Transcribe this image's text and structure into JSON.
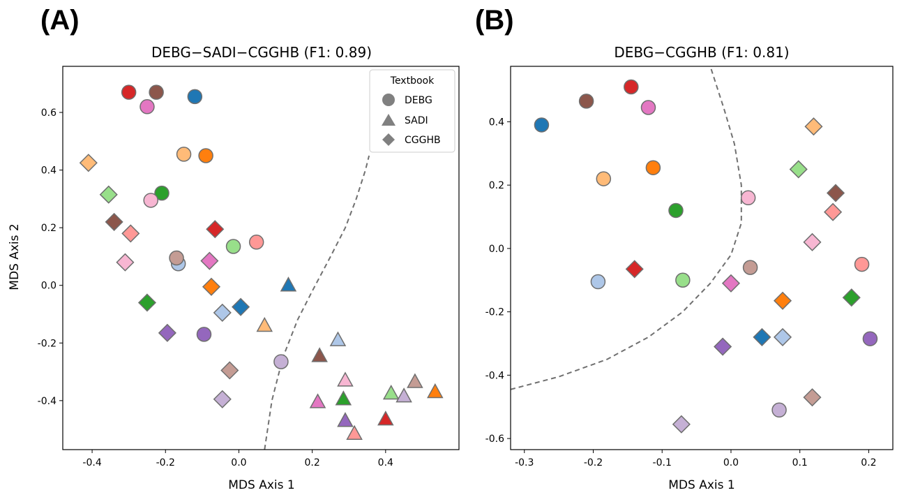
{
  "palette": {
    "blue": "#1f77b4",
    "light_blue": "#aec7e8",
    "orange": "#ff7f0e",
    "light_orange": "#ffbb78",
    "green": "#2ca02c",
    "light_green": "#98df8a",
    "red": "#d62728",
    "light_red": "#ff9896",
    "purple": "#9467bd",
    "light_purple": "#c5b0d5",
    "brown": "#8c564b",
    "light_brown": "#c49c94",
    "pink": "#e377c2",
    "light_pink": "#f7b6d2"
  },
  "chart_data": [
    {
      "panel_label": "(A)",
      "type": "scatter",
      "title": "DEBG−SADI−CGGHB (F1: 0.89)",
      "xlabel": "MDS Axis 1",
      "ylabel": "MDS Axis 2",
      "xlim": [
        -0.48,
        0.6
      ],
      "ylim": [
        -0.57,
        0.76
      ],
      "xticks": [
        -0.4,
        -0.2,
        0.0,
        0.2,
        0.4
      ],
      "xtick_labels": [
        "-0.4",
        "-0.2",
        "0.0",
        "0.2",
        "0.4"
      ],
      "yticks": [
        -0.4,
        -0.2,
        0.0,
        0.2,
        0.4,
        0.6
      ],
      "ytick_labels": [
        "-0.4",
        "-0.2",
        "0.0",
        "0.2",
        "0.4",
        "0.6"
      ],
      "grid": false,
      "legend": {
        "title": "Textbook",
        "location": "top-right",
        "entries": [
          {
            "label": "DEBG",
            "marker": "circle"
          },
          {
            "label": "SADI",
            "marker": "triangle"
          },
          {
            "label": "CGGHB",
            "marker": "diamond"
          }
        ]
      },
      "boundary_curve": [
        [
          0.07,
          -0.57
        ],
        [
          0.09,
          -0.4
        ],
        [
          0.12,
          -0.25
        ],
        [
          0.16,
          -0.12
        ],
        [
          0.2,
          -0.02
        ],
        [
          0.25,
          0.1
        ],
        [
          0.29,
          0.2
        ],
        [
          0.32,
          0.3
        ],
        [
          0.345,
          0.4
        ],
        [
          0.355,
          0.45
        ]
      ],
      "points": [
        {
          "x": -0.3,
          "y": 0.67,
          "marker": "circle",
          "color": "red"
        },
        {
          "x": -0.225,
          "y": 0.67,
          "marker": "circle",
          "color": "brown"
        },
        {
          "x": -0.12,
          "y": 0.655,
          "marker": "circle",
          "color": "blue"
        },
        {
          "x": -0.25,
          "y": 0.62,
          "marker": "circle",
          "color": "pink"
        },
        {
          "x": -0.15,
          "y": 0.455,
          "marker": "circle",
          "color": "light_orange"
        },
        {
          "x": -0.09,
          "y": 0.45,
          "marker": "circle",
          "color": "orange"
        },
        {
          "x": -0.21,
          "y": 0.32,
          "marker": "circle",
          "color": "green"
        },
        {
          "x": -0.24,
          "y": 0.295,
          "marker": "circle",
          "color": "light_pink"
        },
        {
          "x": -0.015,
          "y": 0.135,
          "marker": "circle",
          "color": "light_green"
        },
        {
          "x": 0.048,
          "y": 0.15,
          "marker": "circle",
          "color": "light_red"
        },
        {
          "x": -0.165,
          "y": 0.075,
          "marker": "circle",
          "color": "light_blue"
        },
        {
          "x": -0.17,
          "y": 0.095,
          "marker": "circle",
          "color": "light_brown"
        },
        {
          "x": -0.095,
          "y": -0.17,
          "marker": "circle",
          "color": "purple"
        },
        {
          "x": 0.115,
          "y": -0.265,
          "marker": "circle",
          "color": "light_purple"
        },
        {
          "x": -0.41,
          "y": 0.425,
          "marker": "diamond",
          "color": "light_orange"
        },
        {
          "x": -0.355,
          "y": 0.315,
          "marker": "diamond",
          "color": "light_green"
        },
        {
          "x": -0.34,
          "y": 0.22,
          "marker": "diamond",
          "color": "brown"
        },
        {
          "x": -0.295,
          "y": 0.18,
          "marker": "diamond",
          "color": "light_red"
        },
        {
          "x": -0.31,
          "y": 0.08,
          "marker": "diamond",
          "color": "light_pink"
        },
        {
          "x": -0.065,
          "y": 0.195,
          "marker": "diamond",
          "color": "red"
        },
        {
          "x": -0.08,
          "y": 0.085,
          "marker": "diamond",
          "color": "pink"
        },
        {
          "x": -0.075,
          "y": -0.005,
          "marker": "diamond",
          "color": "orange"
        },
        {
          "x": 0.005,
          "y": -0.075,
          "marker": "diamond",
          "color": "blue"
        },
        {
          "x": -0.045,
          "y": -0.095,
          "marker": "diamond",
          "color": "light_blue"
        },
        {
          "x": -0.25,
          "y": -0.06,
          "marker": "diamond",
          "color": "green"
        },
        {
          "x": -0.195,
          "y": -0.165,
          "marker": "diamond",
          "color": "purple"
        },
        {
          "x": -0.025,
          "y": -0.295,
          "marker": "diamond",
          "color": "light_brown"
        },
        {
          "x": -0.045,
          "y": -0.395,
          "marker": "diamond",
          "color": "light_purple"
        },
        {
          "x": 0.135,
          "y": 0.0,
          "marker": "triangle",
          "color": "blue"
        },
        {
          "x": 0.07,
          "y": -0.14,
          "marker": "triangle",
          "color": "light_orange"
        },
        {
          "x": 0.27,
          "y": -0.19,
          "marker": "triangle",
          "color": "light_blue"
        },
        {
          "x": 0.22,
          "y": -0.245,
          "marker": "triangle",
          "color": "brown"
        },
        {
          "x": 0.29,
          "y": -0.33,
          "marker": "triangle",
          "color": "light_pink"
        },
        {
          "x": 0.415,
          "y": -0.375,
          "marker": "triangle",
          "color": "light_green"
        },
        {
          "x": 0.45,
          "y": -0.385,
          "marker": "triangle",
          "color": "light_purple"
        },
        {
          "x": 0.48,
          "y": -0.335,
          "marker": "triangle",
          "color": "light_brown"
        },
        {
          "x": 0.535,
          "y": -0.37,
          "marker": "triangle",
          "color": "orange"
        },
        {
          "x": 0.215,
          "y": -0.405,
          "marker": "triangle",
          "color": "pink"
        },
        {
          "x": 0.285,
          "y": -0.395,
          "marker": "triangle",
          "color": "green"
        },
        {
          "x": 0.29,
          "y": -0.47,
          "marker": "triangle",
          "color": "purple"
        },
        {
          "x": 0.315,
          "y": -0.515,
          "marker": "triangle",
          "color": "light_red"
        },
        {
          "x": 0.4,
          "y": -0.465,
          "marker": "triangle",
          "color": "red"
        }
      ]
    },
    {
      "panel_label": "(B)",
      "type": "scatter",
      "title": "DEBG−CGGHB (F1: 0.81)",
      "xlabel": "MDS Axis 1",
      "ylabel": "",
      "xlim": [
        -0.32,
        0.235
      ],
      "ylim": [
        -0.635,
        0.575
      ],
      "xticks": [
        -0.3,
        -0.2,
        -0.1,
        0.0,
        0.1,
        0.2
      ],
      "xtick_labels": [
        "-0.3",
        "-0.2",
        "-0.1",
        "0.0",
        "0.1",
        "0.2"
      ],
      "yticks": [
        -0.6,
        -0.4,
        -0.2,
        0.0,
        0.2,
        0.4
      ],
      "ytick_labels": [
        "-0.6",
        "-0.4",
        "-0.2",
        "0.0",
        "0.2",
        "0.4"
      ],
      "grid": false,
      "boundary_curve": [
        [
          -0.32,
          -0.445
        ],
        [
          -0.25,
          -0.405
        ],
        [
          -0.18,
          -0.35
        ],
        [
          -0.12,
          -0.28
        ],
        [
          -0.07,
          -0.2
        ],
        [
          -0.03,
          -0.11
        ],
        [
          0.0,
          -0.02
        ],
        [
          0.015,
          0.08
        ],
        [
          0.015,
          0.2
        ],
        [
          0.005,
          0.33
        ],
        [
          -0.01,
          0.44
        ],
        [
          -0.03,
          0.575
        ]
      ],
      "points": [
        {
          "x": -0.275,
          "y": 0.39,
          "marker": "circle",
          "color": "blue"
        },
        {
          "x": -0.21,
          "y": 0.465,
          "marker": "circle",
          "color": "brown"
        },
        {
          "x": -0.145,
          "y": 0.51,
          "marker": "circle",
          "color": "red"
        },
        {
          "x": -0.12,
          "y": 0.445,
          "marker": "circle",
          "color": "pink"
        },
        {
          "x": -0.185,
          "y": 0.22,
          "marker": "circle",
          "color": "light_orange"
        },
        {
          "x": -0.113,
          "y": 0.255,
          "marker": "circle",
          "color": "orange"
        },
        {
          "x": -0.08,
          "y": 0.12,
          "marker": "circle",
          "color": "green"
        },
        {
          "x": -0.07,
          "y": -0.1,
          "marker": "circle",
          "color": "light_green"
        },
        {
          "x": -0.193,
          "y": -0.105,
          "marker": "circle",
          "color": "light_blue"
        },
        {
          "x": 0.025,
          "y": 0.16,
          "marker": "circle",
          "color": "light_pink"
        },
        {
          "x": 0.028,
          "y": -0.06,
          "marker": "circle",
          "color": "light_brown"
        },
        {
          "x": 0.19,
          "y": -0.05,
          "marker": "circle",
          "color": "light_red"
        },
        {
          "x": 0.202,
          "y": -0.285,
          "marker": "circle",
          "color": "purple"
        },
        {
          "x": 0.07,
          "y": -0.51,
          "marker": "circle",
          "color": "light_purple"
        },
        {
          "x": 0.12,
          "y": 0.385,
          "marker": "diamond",
          "color": "light_orange"
        },
        {
          "x": 0.098,
          "y": 0.25,
          "marker": "diamond",
          "color": "light_green"
        },
        {
          "x": 0.152,
          "y": 0.175,
          "marker": "diamond",
          "color": "brown"
        },
        {
          "x": 0.148,
          "y": 0.115,
          "marker": "diamond",
          "color": "light_red"
        },
        {
          "x": 0.118,
          "y": 0.02,
          "marker": "diamond",
          "color": "light_pink"
        },
        {
          "x": -0.14,
          "y": -0.065,
          "marker": "diamond",
          "color": "red"
        },
        {
          "x": 0.0,
          "y": -0.11,
          "marker": "diamond",
          "color": "pink"
        },
        {
          "x": 0.075,
          "y": -0.165,
          "marker": "diamond",
          "color": "orange"
        },
        {
          "x": 0.175,
          "y": -0.155,
          "marker": "diamond",
          "color": "green"
        },
        {
          "x": 0.045,
          "y": -0.28,
          "marker": "diamond",
          "color": "blue"
        },
        {
          "x": 0.075,
          "y": -0.28,
          "marker": "diamond",
          "color": "light_blue"
        },
        {
          "x": -0.012,
          "y": -0.31,
          "marker": "diamond",
          "color": "purple"
        },
        {
          "x": 0.118,
          "y": -0.47,
          "marker": "diamond",
          "color": "light_brown"
        },
        {
          "x": -0.072,
          "y": -0.555,
          "marker": "diamond",
          "color": "light_purple"
        }
      ]
    }
  ]
}
